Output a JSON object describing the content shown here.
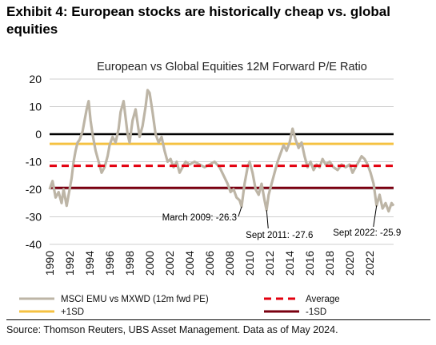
{
  "exhibit_title": "Exhibit 4: European stocks are historically cheap vs. global equities",
  "source": "Source: Thomson Reuters, UBS Asset Management. Data as of May 2024.",
  "chart_data": {
    "type": "line",
    "title": "European vs Global Equities 12M Forward P/E Ratio",
    "xlabel": "",
    "ylabel": "",
    "xlim": [
      1990,
      2024.4
    ],
    "ylim": [
      -40,
      20
    ],
    "y_ticks": [
      20,
      10,
      0,
      -10,
      -20,
      -30,
      -40
    ],
    "x_ticks": [
      1990,
      1992,
      1994,
      1996,
      1998,
      2000,
      2002,
      2004,
      2006,
      2008,
      2010,
      2012,
      2014,
      2016,
      2018,
      2020,
      2022
    ],
    "grid": "horizontal",
    "series": [
      {
        "name": "MSCI EMU vs MXWD (12m fwd PE)",
        "color": "#bdb5a6",
        "style": "solid",
        "points": [
          [
            1990.0,
            -20
          ],
          [
            1990.3,
            -17
          ],
          [
            1990.6,
            -23
          ],
          [
            1990.9,
            -21
          ],
          [
            1991.2,
            -25
          ],
          [
            1991.4,
            -20
          ],
          [
            1991.7,
            -26
          ],
          [
            1991.9,
            -22
          ],
          [
            1992.2,
            -16
          ],
          [
            1992.4,
            -10
          ],
          [
            1992.6,
            -6
          ],
          [
            1992.8,
            -3
          ],
          [
            1993.0,
            -2
          ],
          [
            1993.3,
            1
          ],
          [
            1993.5,
            5
          ],
          [
            1993.7,
            9
          ],
          [
            1993.9,
            12
          ],
          [
            1994.1,
            5
          ],
          [
            1994.3,
            0
          ],
          [
            1994.6,
            -6
          ],
          [
            1994.9,
            -10
          ],
          [
            1995.2,
            -14
          ],
          [
            1995.5,
            -12
          ],
          [
            1995.8,
            -8
          ],
          [
            1996.0,
            -4
          ],
          [
            1996.3,
            -1
          ],
          [
            1996.6,
            -3
          ],
          [
            1996.9,
            2
          ],
          [
            1997.1,
            8
          ],
          [
            1997.4,
            12
          ],
          [
            1997.6,
            6
          ],
          [
            1997.8,
            0
          ],
          [
            1998.0,
            -3
          ],
          [
            1998.3,
            5
          ],
          [
            1998.6,
            9
          ],
          [
            1998.8,
            4
          ],
          [
            1999.0,
            -1
          ],
          [
            1999.3,
            3
          ],
          [
            1999.6,
            10
          ],
          [
            1999.8,
            16
          ],
          [
            2000.0,
            15
          ],
          [
            2000.3,
            8
          ],
          [
            2000.6,
            0
          ],
          [
            2000.9,
            -3
          ],
          [
            2001.2,
            -1
          ],
          [
            2001.5,
            -6
          ],
          [
            2001.8,
            -10
          ],
          [
            2002.1,
            -9
          ],
          [
            2002.4,
            -12
          ],
          [
            2002.7,
            -10
          ],
          [
            2003.0,
            -14
          ],
          [
            2003.3,
            -12
          ],
          [
            2003.6,
            -10
          ],
          [
            2004.0,
            -11
          ],
          [
            2004.5,
            -10
          ],
          [
            2005.0,
            -11
          ],
          [
            2005.5,
            -12
          ],
          [
            2006.0,
            -11
          ],
          [
            2006.5,
            -10
          ],
          [
            2007.0,
            -12
          ],
          [
            2007.4,
            -15
          ],
          [
            2007.8,
            -18
          ],
          [
            2008.1,
            -21
          ],
          [
            2008.4,
            -20
          ],
          [
            2008.7,
            -23
          ],
          [
            2009.0,
            -24
          ],
          [
            2009.2,
            -26.3
          ],
          [
            2009.5,
            -18
          ],
          [
            2009.8,
            -12
          ],
          [
            2010.0,
            -10
          ],
          [
            2010.3,
            -14
          ],
          [
            2010.6,
            -20
          ],
          [
            2010.9,
            -22
          ],
          [
            2011.2,
            -18
          ],
          [
            2011.5,
            -24
          ],
          [
            2011.7,
            -27.6
          ],
          [
            2011.9,
            -22
          ],
          [
            2012.2,
            -18
          ],
          [
            2012.5,
            -14
          ],
          [
            2012.8,
            -10
          ],
          [
            2013.1,
            -7
          ],
          [
            2013.4,
            -4
          ],
          [
            2013.7,
            -6
          ],
          [
            2014.0,
            -3
          ],
          [
            2014.3,
            2
          ],
          [
            2014.6,
            -2
          ],
          [
            2014.9,
            -5
          ],
          [
            2015.2,
            -3
          ],
          [
            2015.5,
            -8
          ],
          [
            2015.8,
            -12
          ],
          [
            2016.1,
            -10
          ],
          [
            2016.4,
            -13
          ],
          [
            2016.7,
            -11
          ],
          [
            2017.0,
            -12
          ],
          [
            2017.3,
            -9
          ],
          [
            2017.6,
            -11
          ],
          [
            2018.0,
            -10
          ],
          [
            2018.4,
            -12
          ],
          [
            2018.8,
            -13
          ],
          [
            2019.2,
            -11
          ],
          [
            2019.6,
            -12
          ],
          [
            2020.0,
            -11
          ],
          [
            2020.3,
            -14
          ],
          [
            2020.6,
            -12
          ],
          [
            2020.9,
            -10
          ],
          [
            2021.2,
            -8
          ],
          [
            2021.5,
            -9
          ],
          [
            2021.8,
            -11
          ],
          [
            2022.1,
            -14
          ],
          [
            2022.4,
            -18
          ],
          [
            2022.7,
            -25.9
          ],
          [
            2023.0,
            -22
          ],
          [
            2023.3,
            -27
          ],
          [
            2023.6,
            -25
          ],
          [
            2023.9,
            -28
          ],
          [
            2024.2,
            -25
          ],
          [
            2024.4,
            -26
          ]
        ]
      },
      {
        "name": "Average",
        "color": "#e3000f",
        "style": "dashed",
        "value": -11.5
      },
      {
        "name": "+1SD",
        "color": "#f5c242",
        "style": "solid",
        "value": -3.5
      },
      {
        "name": "-1SD",
        "color": "#7a0010",
        "style": "solid",
        "value": -19.5
      }
    ],
    "zero_line": {
      "value": 0,
      "color": "#000000"
    },
    "annotations": [
      {
        "text": "March 2009: -26.3",
        "x": 2009.2,
        "y": -26.3
      },
      {
        "text": "Sept 2011: -27.6",
        "x": 2011.7,
        "y": -27.6
      },
      {
        "text": "Sept 2022: -25.9",
        "x": 2022.7,
        "y": -25.9
      }
    ],
    "legend": {
      "position": "bottom",
      "entries": [
        "MSCI EMU vs MXWD (12m fwd PE)",
        "Average",
        "+1SD",
        "-1SD"
      ]
    }
  }
}
